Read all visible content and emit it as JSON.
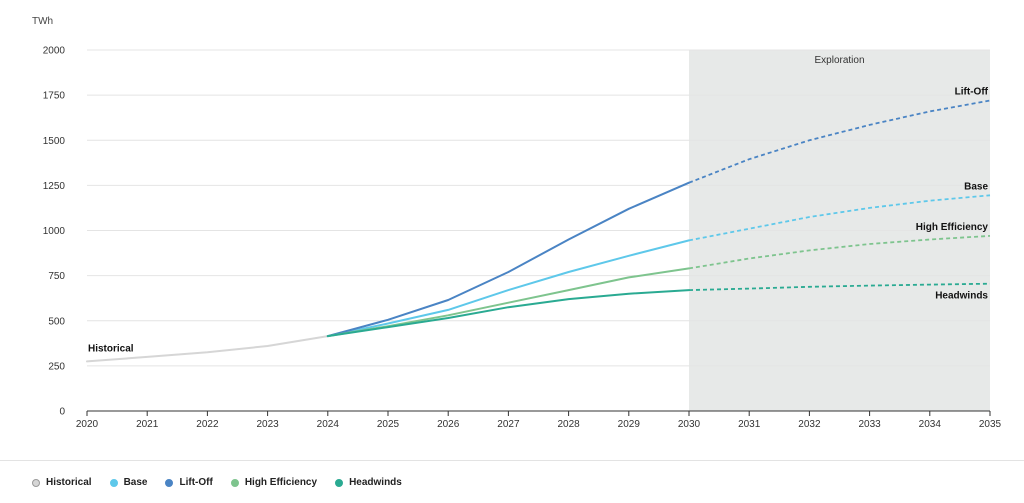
{
  "chart_data": {
    "type": "line",
    "unit": "TWh",
    "x": [
      2020,
      2021,
      2022,
      2023,
      2024,
      2025,
      2026,
      2027,
      2028,
      2029,
      2030,
      2031,
      2032,
      2033,
      2034,
      2035
    ],
    "xlim": [
      2020,
      2035
    ],
    "ylim": [
      0,
      2000
    ],
    "yticks": [
      0,
      250,
      500,
      750,
      1000,
      1250,
      1500,
      1750,
      2000
    ],
    "grid": true,
    "projection_split_year": 2030,
    "shaded_region": {
      "label": "Exploration",
      "from": 2030,
      "to": 2035
    },
    "series": [
      {
        "name": "Historical",
        "color": "#d6d6d6",
        "x": [
          2020,
          2021,
          2022,
          2023,
          2024
        ],
        "values": [
          275,
          300,
          325,
          360,
          415
        ]
      },
      {
        "name": "Base",
        "color": "#5ec8ea",
        "x": [
          2024,
          2025,
          2026,
          2027,
          2028,
          2029,
          2030,
          2031,
          2032,
          2033,
          2034,
          2035
        ],
        "values": [
          415,
          485,
          560,
          670,
          770,
          860,
          945,
          1010,
          1075,
          1125,
          1165,
          1195
        ]
      },
      {
        "name": "Lift-Off",
        "color": "#4a84c4",
        "x": [
          2024,
          2025,
          2026,
          2027,
          2028,
          2029,
          2030,
          2031,
          2032,
          2033,
          2034,
          2035
        ],
        "values": [
          415,
          505,
          615,
          770,
          950,
          1120,
          1265,
          1395,
          1500,
          1585,
          1660,
          1720
        ]
      },
      {
        "name": "High Efficiency",
        "color": "#7ec48e",
        "x": [
          2024,
          2025,
          2026,
          2027,
          2028,
          2029,
          2030,
          2031,
          2032,
          2033,
          2034,
          2035
        ],
        "values": [
          415,
          470,
          530,
          600,
          670,
          740,
          790,
          845,
          890,
          925,
          950,
          970
        ]
      },
      {
        "name": "Headwinds",
        "color": "#2aaa92",
        "x": [
          2024,
          2025,
          2026,
          2027,
          2028,
          2029,
          2030,
          2031,
          2032,
          2033,
          2034,
          2035
        ],
        "values": [
          415,
          465,
          515,
          575,
          620,
          650,
          670,
          678,
          688,
          695,
          700,
          705
        ]
      }
    ]
  },
  "legend": [
    {
      "label": "Historical",
      "color": "#d6d6d6",
      "border": "#9a9a9a"
    },
    {
      "label": "Base",
      "color": "#5ec8ea",
      "border": "#5ec8ea"
    },
    {
      "label": "Lift-Off",
      "color": "#4a84c4",
      "border": "#4a84c4"
    },
    {
      "label": "High Efficiency",
      "color": "#7ec48e",
      "border": "#7ec48e"
    },
    {
      "label": "Headwinds",
      "color": "#2aaa92",
      "border": "#2aaa92"
    }
  ]
}
